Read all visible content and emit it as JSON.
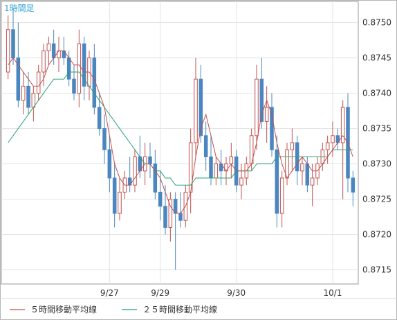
{
  "chart_data": {
    "type": "candlestick",
    "title": "1時間足",
    "ylim": [
      0.8713,
      0.8753
    ],
    "y_ticks": [
      "0.8750",
      "0.8745",
      "0.8740",
      "0.8735",
      "0.8730",
      "0.8725",
      "0.8720",
      "0.8715"
    ],
    "x_labels": [
      "9/27",
      "9/29",
      "9/30",
      "10/1"
    ],
    "grid": true,
    "legend_position": "bottom-left",
    "legend": [
      {
        "name": "５時間移動平均線",
        "color": "#c0504d"
      },
      {
        "name": "２５時間移動平均線",
        "color": "#2aa172"
      }
    ],
    "colors": {
      "up": "#c0504d",
      "down": "#4a86c0",
      "ma5": "#c0504d",
      "ma25": "#2aa172",
      "title": "#2ea3d6"
    },
    "candles": [
      [
        0.8743,
        0.8751,
        0.8742,
        0.8749
      ],
      [
        0.8749,
        0.8752,
        0.8744,
        0.8745
      ],
      [
        0.8745,
        0.875,
        0.8738,
        0.8739
      ],
      [
        0.8739,
        0.8743,
        0.8737,
        0.8741
      ],
      [
        0.8741,
        0.8743,
        0.8737,
        0.8738
      ],
      [
        0.8738,
        0.8741,
        0.8736,
        0.874
      ],
      [
        0.874,
        0.8744,
        0.8739,
        0.8743
      ],
      [
        0.8743,
        0.8747,
        0.8741,
        0.8746
      ],
      [
        0.8746,
        0.8748,
        0.8744,
        0.8747
      ],
      [
        0.8747,
        0.8749,
        0.8744,
        0.8745
      ],
      [
        0.8745,
        0.8748,
        0.8743,
        0.8746
      ],
      [
        0.8746,
        0.8748,
        0.8744,
        0.8745
      ],
      [
        0.8745,
        0.8746,
        0.8741,
        0.8742
      ],
      [
        0.8742,
        0.8744,
        0.8739,
        0.874
      ],
      [
        0.874,
        0.8749,
        0.8738,
        0.8747
      ],
      [
        0.8747,
        0.8748,
        0.8739,
        0.8741
      ],
      [
        0.8741,
        0.8746,
        0.8739,
        0.8745
      ],
      [
        0.8745,
        0.8747,
        0.8737,
        0.8738
      ],
      [
        0.8738,
        0.874,
        0.8734,
        0.8735
      ],
      [
        0.8735,
        0.8737,
        0.873,
        0.8732
      ],
      [
        0.8732,
        0.8734,
        0.8726,
        0.8728
      ],
      [
        0.8728,
        0.873,
        0.8721,
        0.8723
      ],
      [
        0.8723,
        0.8728,
        0.8722,
        0.8726
      ],
      [
        0.8726,
        0.8729,
        0.8725,
        0.8728
      ],
      [
        0.8728,
        0.8731,
        0.8726,
        0.8727
      ],
      [
        0.8727,
        0.8732,
        0.8726,
        0.8731
      ],
      [
        0.8731,
        0.8734,
        0.8728,
        0.8729
      ],
      [
        0.8729,
        0.8733,
        0.8727,
        0.8731
      ],
      [
        0.8731,
        0.8733,
        0.8728,
        0.873
      ],
      [
        0.873,
        0.8732,
        0.8725,
        0.8726
      ],
      [
        0.8726,
        0.8729,
        0.8722,
        0.8724
      ],
      [
        0.8724,
        0.8727,
        0.872,
        0.8721
      ],
      [
        0.8721,
        0.8726,
        0.8719,
        0.8725
      ],
      [
        0.8725,
        0.8726,
        0.8715,
        0.8723
      ],
      [
        0.8723,
        0.8726,
        0.8721,
        0.8722
      ],
      [
        0.8722,
        0.8727,
        0.8721,
        0.8726
      ],
      [
        0.8726,
        0.8735,
        0.8723,
        0.8733
      ],
      [
        0.8733,
        0.8745,
        0.8731,
        0.8742
      ],
      [
        0.8742,
        0.8744,
        0.8733,
        0.8734
      ],
      [
        0.8734,
        0.8736,
        0.8729,
        0.8731
      ],
      [
        0.8731,
        0.8734,
        0.8727,
        0.8728
      ],
      [
        0.8728,
        0.8731,
        0.8727,
        0.873
      ],
      [
        0.873,
        0.8732,
        0.8727,
        0.8729
      ],
      [
        0.8729,
        0.8731,
        0.8727,
        0.873
      ],
      [
        0.873,
        0.8733,
        0.8728,
        0.8731
      ],
      [
        0.8731,
        0.8732,
        0.8726,
        0.8727
      ],
      [
        0.8727,
        0.873,
        0.8725,
        0.8728
      ],
      [
        0.8728,
        0.8731,
        0.8727,
        0.873
      ],
      [
        0.873,
        0.8735,
        0.8729,
        0.8734
      ],
      [
        0.8734,
        0.8744,
        0.8732,
        0.8742
      ],
      [
        0.8742,
        0.8745,
        0.8735,
        0.8736
      ],
      [
        0.8736,
        0.8741,
        0.8733,
        0.8738
      ],
      [
        0.8738,
        0.874,
        0.8731,
        0.8732
      ],
      [
        0.8732,
        0.8734,
        0.8721,
        0.8723
      ],
      [
        0.8723,
        0.8729,
        0.8721,
        0.8728
      ],
      [
        0.8728,
        0.8733,
        0.8727,
        0.8732
      ],
      [
        0.8732,
        0.8735,
        0.8729,
        0.8733
      ],
      [
        0.8733,
        0.8734,
        0.8727,
        0.8729
      ],
      [
        0.8729,
        0.8731,
        0.8727,
        0.873
      ],
      [
        0.873,
        0.8731,
        0.8726,
        0.8727
      ],
      [
        0.8727,
        0.873,
        0.8724,
        0.8728
      ],
      [
        0.8728,
        0.8731,
        0.8727,
        0.873
      ],
      [
        0.873,
        0.8733,
        0.8729,
        0.8732
      ],
      [
        0.8732,
        0.8734,
        0.873,
        0.8733
      ],
      [
        0.8733,
        0.8736,
        0.8731,
        0.8734
      ],
      [
        0.8734,
        0.8735,
        0.8732,
        0.8733
      ],
      [
        0.8733,
        0.8739,
        0.8725,
        0.8738
      ],
      [
        0.8738,
        0.874,
        0.8726,
        0.8728
      ],
      [
        0.8728,
        0.8729,
        0.8724,
        0.8726
      ]
    ],
    "ma5": [
      0.8744,
      0.8745,
      0.8744,
      0.8743,
      0.8742,
      0.8741,
      0.8741,
      0.8742,
      0.8744,
      0.8745,
      0.8746,
      0.8746,
      0.8745,
      0.8744,
      0.8744,
      0.8743,
      0.8743,
      0.8742,
      0.874,
      0.8738,
      0.8734,
      0.873,
      0.8728,
      0.8727,
      0.8727,
      0.8728,
      0.8729,
      0.873,
      0.873,
      0.8729,
      0.8728,
      0.8726,
      0.8724,
      0.8723,
      0.8723,
      0.8724,
      0.8726,
      0.8731,
      0.8735,
      0.8737,
      0.8734,
      0.8731,
      0.873,
      0.8729,
      0.873,
      0.8729,
      0.8729,
      0.8729,
      0.873,
      0.8733,
      0.8737,
      0.8739,
      0.8737,
      0.8733,
      0.873,
      0.8728,
      0.8729,
      0.873,
      0.8731,
      0.873,
      0.8729,
      0.8729,
      0.873,
      0.8731,
      0.8732,
      0.8733,
      0.8734,
      0.8733,
      0.8731
    ],
    "ma25": [
      0.8733,
      0.8734,
      0.8735,
      0.8736,
      0.8737,
      0.8738,
      0.8739,
      0.874,
      0.8741,
      0.8742,
      0.8742,
      0.8742,
      0.8743,
      0.8743,
      0.8743,
      0.8742,
      0.8741,
      0.874,
      0.8739,
      0.8738,
      0.8737,
      0.8736,
      0.8735,
      0.8734,
      0.8733,
      0.8732,
      0.8731,
      0.873,
      0.873,
      0.8729,
      0.8729,
      0.8728,
      0.8728,
      0.8727,
      0.8727,
      0.8727,
      0.8727,
      0.8728,
      0.8728,
      0.8728,
      0.8728,
      0.8728,
      0.8728,
      0.8728,
      0.8728,
      0.8729,
      0.8729,
      0.8729,
      0.8729,
      0.873,
      0.873,
      0.873,
      0.873,
      0.8731,
      0.8731,
      0.8731,
      0.8731,
      0.8731,
      0.8731,
      0.8731,
      0.8731,
      0.8731,
      0.8731,
      0.8731,
      0.8732,
      0.8732,
      0.8732,
      0.8732,
      0.8732
    ]
  }
}
